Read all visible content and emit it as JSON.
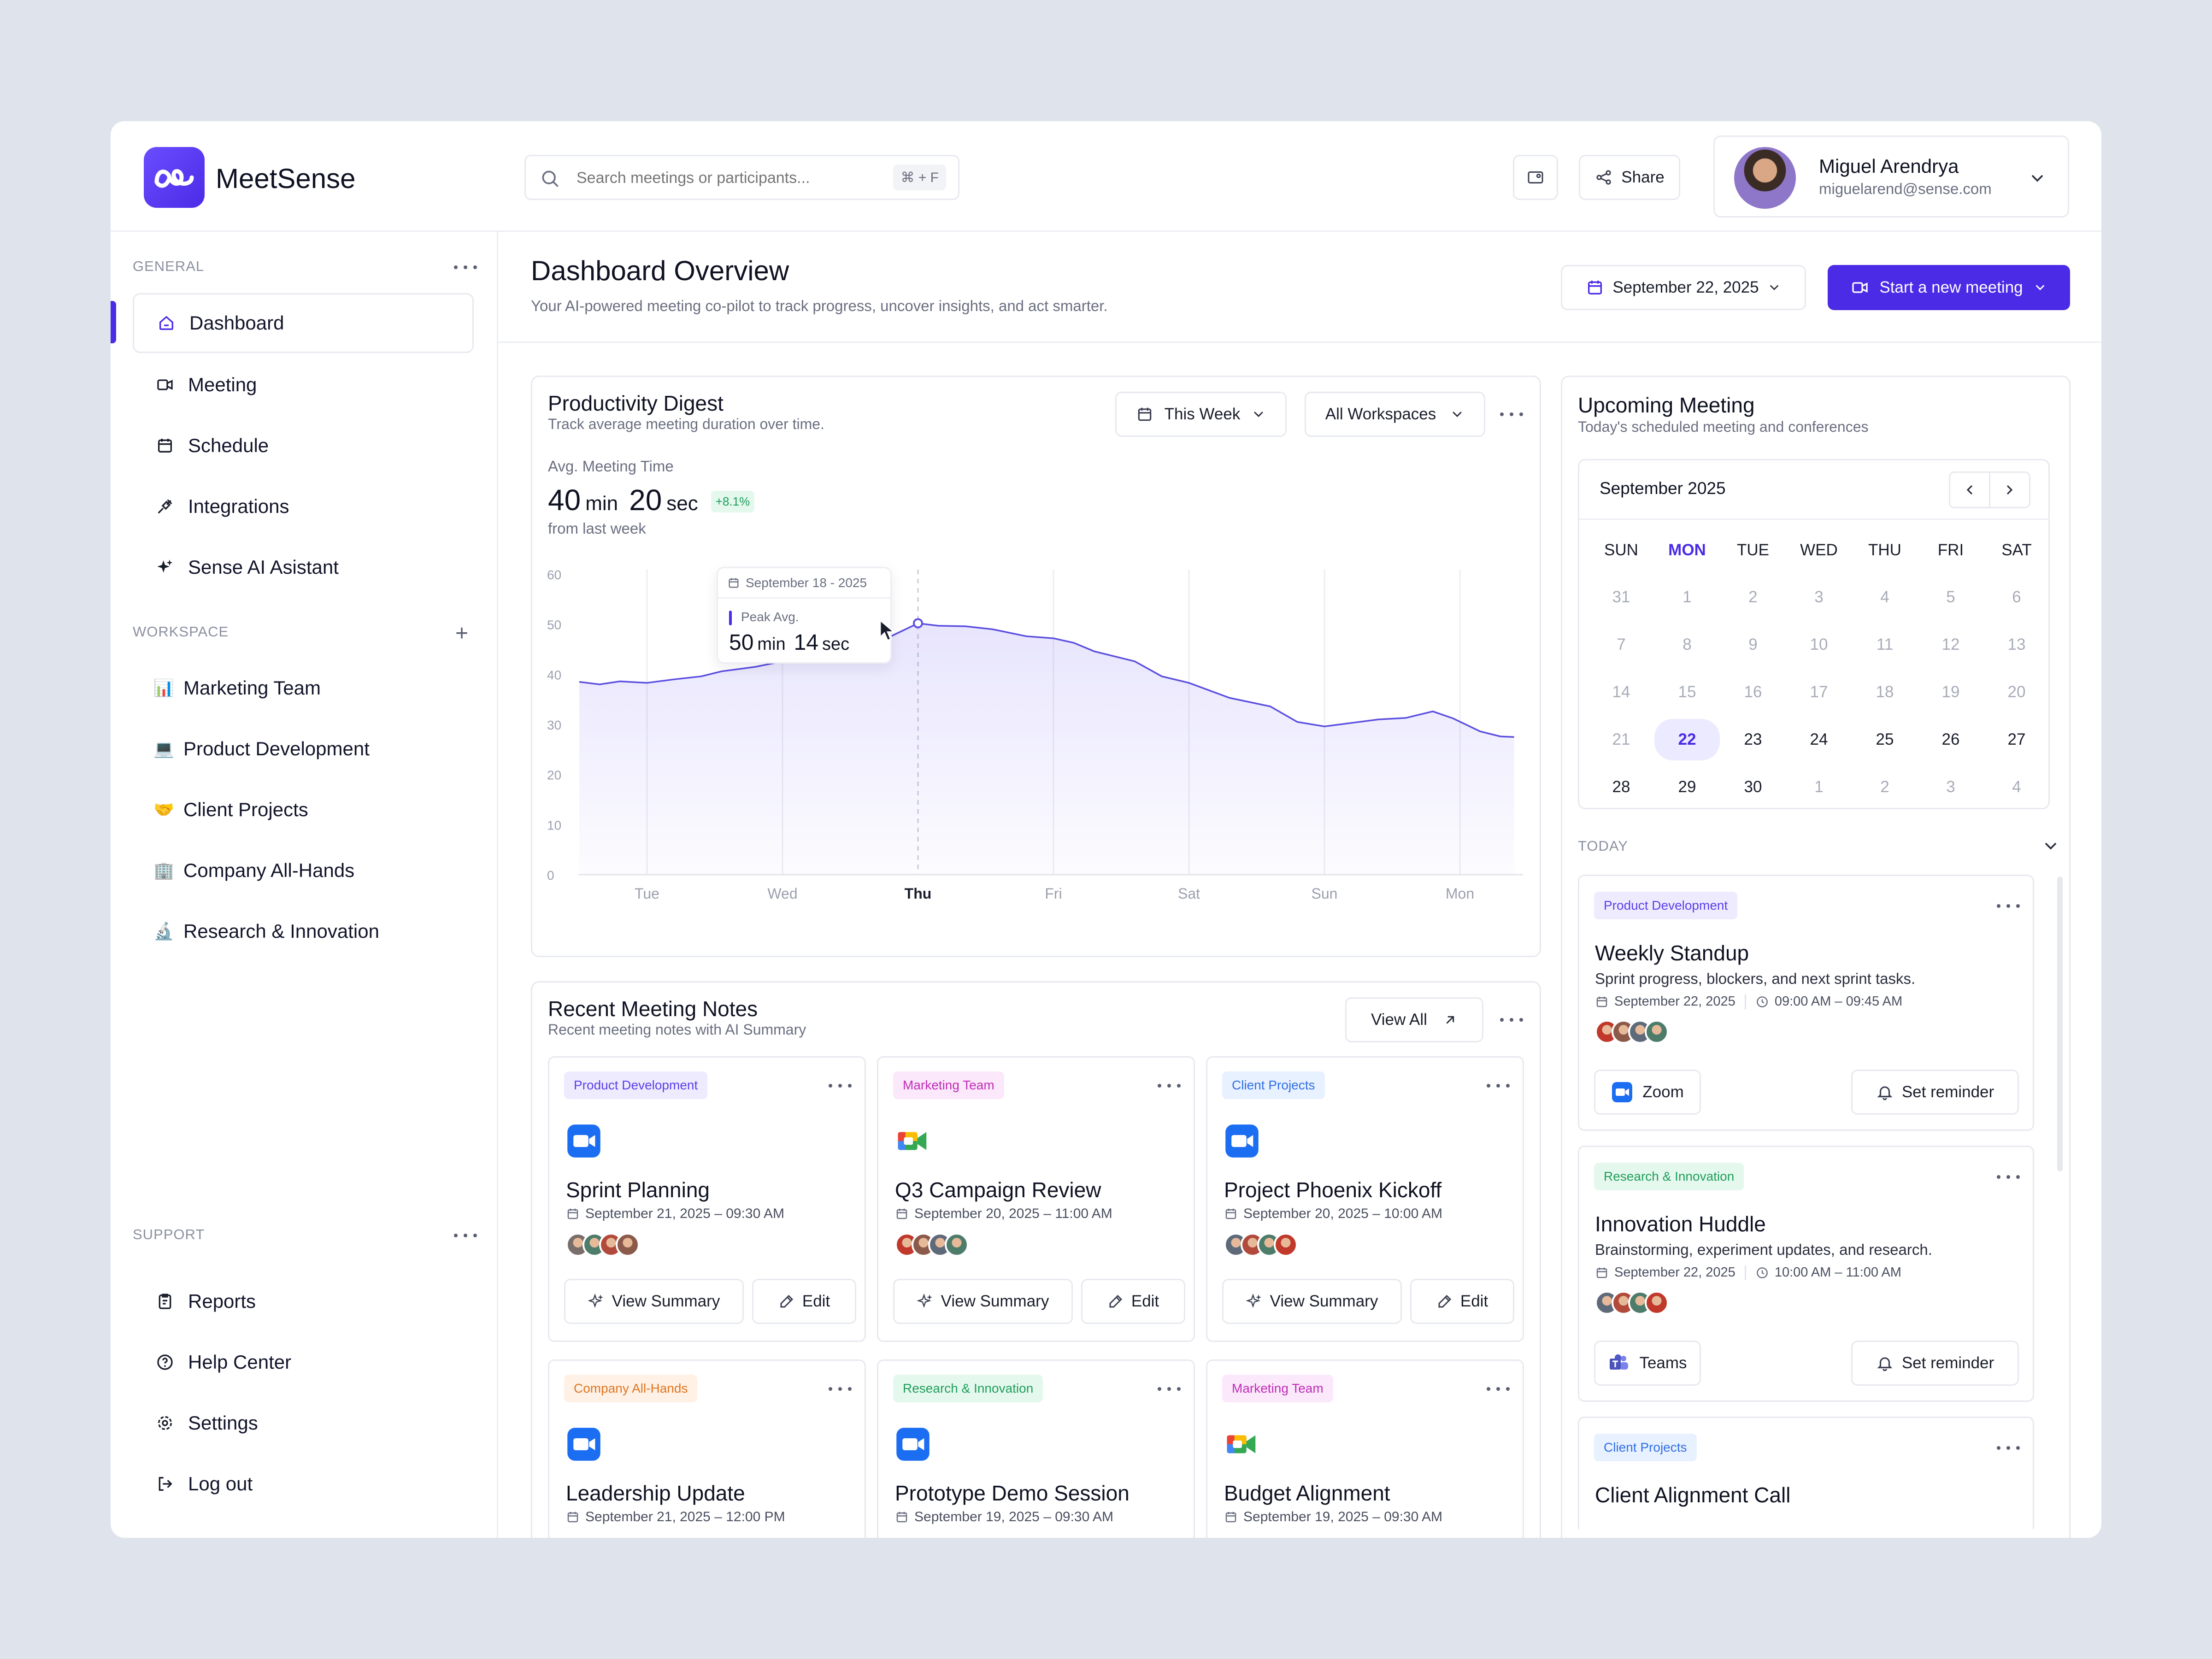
{
  "app": {
    "name": "MeetSense"
  },
  "search": {
    "placeholder": "Search meetings or participants...",
    "shortcut": "⌘ + F"
  },
  "header": {
    "share_label": "Share"
  },
  "user": {
    "name": "Miguel Arendrya",
    "email": "miguelarend@sense.com"
  },
  "sidebar": {
    "general_label": "GENERAL",
    "items": [
      {
        "label": "Dashboard",
        "icon": "home-icon",
        "active": true
      },
      {
        "label": "Meeting",
        "icon": "video-icon"
      },
      {
        "label": "Schedule",
        "icon": "calendar-icon"
      },
      {
        "label": "Integrations",
        "icon": "plug-icon"
      },
      {
        "label": "Sense AI Asistant",
        "icon": "sparkle-icon"
      }
    ],
    "workspace_label": "WORKSPACE",
    "workspaces": [
      {
        "label": "Marketing Team",
        "emoji": "📊"
      },
      {
        "label": "Product Development",
        "emoji": "💻"
      },
      {
        "label": "Client Projects",
        "emoji": "🤝"
      },
      {
        "label": "Company All-Hands",
        "emoji": "🏢"
      },
      {
        "label": "Research & Innovation",
        "emoji": "🔬"
      }
    ],
    "support_label": "SUPPORT",
    "support": [
      {
        "label": "Reports",
        "icon": "report-icon"
      },
      {
        "label": "Help Center",
        "icon": "help-icon"
      },
      {
        "label": "Settings",
        "icon": "gear-icon"
      },
      {
        "label": "Log out",
        "icon": "logout-icon"
      }
    ]
  },
  "page": {
    "title": "Dashboard Overview",
    "subtitle": "Your AI-powered meeting co-pilot to track progress, uncover insights, and act smarter.",
    "date": "September 22, 2025",
    "start_button": "Start a new meeting"
  },
  "digest": {
    "title": "Productivity Digest",
    "subtitle": "Track average meeting duration over time.",
    "period": "This Week",
    "workspace": "All Workspaces",
    "metric_label": "Avg. Meeting Time",
    "min_value": "40",
    "min_unit": "min",
    "sec_value": "20",
    "sec_unit": "sec",
    "change": "+8.1%",
    "compare": "from last week",
    "tooltip": {
      "date": "September 18 - 2025",
      "label": "Peak Avg.",
      "min_value": "50",
      "min_unit": "min",
      "sec_value": "14",
      "sec_unit": "sec"
    }
  },
  "chart_data": {
    "type": "area",
    "categories": [
      "Tue",
      "Wed",
      "Thu",
      "Fri",
      "Sat",
      "Sun",
      "Mon"
    ],
    "highlight": "Thu",
    "x": [
      -0.5,
      -0.35,
      -0.2,
      0,
      0.2,
      0.4,
      0.55,
      0.8,
      1.0,
      1.2,
      1.4,
      1.6,
      1.8,
      2.0,
      2.15,
      2.35,
      2.55,
      2.8,
      3.0,
      3.15,
      3.3,
      3.6,
      3.8,
      4.0,
      4.3,
      4.6,
      4.8,
      5.0,
      5.2,
      5.4,
      5.6,
      5.8,
      5.95,
      6.15,
      6.3,
      6.4
    ],
    "values": [
      38.5,
      38.0,
      38.6,
      38.3,
      39.0,
      39.6,
      40.6,
      41.5,
      42.6,
      43.3,
      45.4,
      45.8,
      47.6,
      50.2,
      49.7,
      49.6,
      49.0,
      47.6,
      47.2,
      46.3,
      44.6,
      42.6,
      39.6,
      38.3,
      35.3,
      33.6,
      30.5,
      29.6,
      30.3,
      31.0,
      31.3,
      32.6,
      31.2,
      28.6,
      27.6,
      27.5
    ],
    "ylim": [
      0,
      60
    ],
    "yticks": [
      "60",
      "50",
      "40",
      "30",
      "20",
      "10",
      "0"
    ],
    "color": "#5B4FE0"
  },
  "notes": {
    "title": "Recent Meeting Notes",
    "subtitle": "Recent meeting notes with AI Summary",
    "view_all": "View All",
    "view_summary": "View Summary",
    "edit": "Edit",
    "cards": [
      {
        "tag": "Product Development",
        "tag_class": "pd",
        "app": "zoom",
        "title": "Sprint Planning",
        "date": "September 21, 2025 – 09:30 AM"
      },
      {
        "tag": "Marketing Team",
        "tag_class": "mk",
        "app": "meet",
        "title": "Q3 Campaign Review",
        "date": "September 20, 2025 – 11:00 AM"
      },
      {
        "tag": "Client Projects",
        "tag_class": "cp",
        "app": "zoom",
        "title": "Project Phoenix Kickoff",
        "date": "September 20, 2025 – 10:00 AM"
      },
      {
        "tag": "Company All-Hands",
        "tag_class": "ca",
        "app": "zoom",
        "title": "Leadership Update",
        "date": "September 21, 2025 – 12:00 PM"
      },
      {
        "tag": "Research & Innovation",
        "tag_class": "ri",
        "app": "zoom",
        "title": "Prototype Demo Session",
        "date": "September 19, 2025 – 09:30 AM"
      },
      {
        "tag": "Marketing Team",
        "tag_class": "mk",
        "app": "meet",
        "title": "Budget Alignment",
        "date": "September 19, 2025 – 09:30 AM"
      }
    ]
  },
  "upcoming": {
    "title": "Upcoming Meeting",
    "subtitle": "Today's scheduled meeting and conferences",
    "month": "September 2025",
    "weekdays": [
      "SUN",
      "MON",
      "TUE",
      "WED",
      "THU",
      "FRI",
      "SAT"
    ],
    "weeks": [
      [
        "31",
        "1",
        "2",
        "3",
        "4",
        "5",
        "6"
      ],
      [
        "7",
        "8",
        "9",
        "10",
        "11",
        "12",
        "13"
      ],
      [
        "14",
        "15",
        "16",
        "17",
        "18",
        "19",
        "20"
      ],
      [
        "21",
        "22",
        "23",
        "24",
        "25",
        "26",
        "27"
      ],
      [
        "28",
        "29",
        "30",
        "1",
        "2",
        "3",
        "4"
      ]
    ],
    "today_label": "TODAY",
    "set_reminder": "Set reminder",
    "meetings": [
      {
        "tag": "Product Development",
        "tag_class": "pd",
        "title": "Weekly Standup",
        "desc": "Sprint progress, blockers, and next sprint tasks.",
        "date": "September 22, 2025",
        "time": "09:00 AM – 09:45 AM",
        "app": "Zoom"
      },
      {
        "tag": "Research & Innovation",
        "tag_class": "ri",
        "title": "Innovation Huddle",
        "desc": "Brainstorming, experiment updates, and research.",
        "date": "September 22, 2025",
        "time": "10:00 AM – 11:00 AM",
        "app": "Teams"
      },
      {
        "tag": "Client Projects",
        "tag_class": "cp",
        "title": "Client Alignment Call"
      }
    ]
  }
}
